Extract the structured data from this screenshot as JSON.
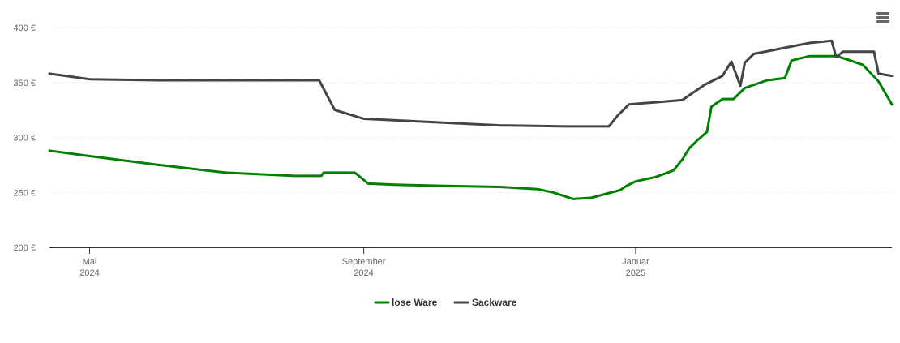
{
  "chart_data": {
    "type": "line",
    "title": "",
    "xlabel": "",
    "ylabel": "",
    "ylim": [
      200,
      400
    ],
    "y_ticks": [
      {
        "value": 200,
        "label": "200 €"
      },
      {
        "value": 250,
        "label": "250 €"
      },
      {
        "value": 300,
        "label": "300 €"
      },
      {
        "value": 350,
        "label": "350 €"
      },
      {
        "value": 400,
        "label": "400 €"
      }
    ],
    "x_ticks": [
      {
        "date": "2024-05-01",
        "line1": "Mai",
        "line2": "2024"
      },
      {
        "date": "2024-09-01",
        "line1": "September",
        "line2": "2024"
      },
      {
        "date": "2025-01-01",
        "line1": "Januar",
        "line2": "2025"
      }
    ],
    "xlim": [
      "2024-04-13",
      "2025-04-26"
    ],
    "grid": true,
    "legend_position": "bottom-center",
    "series": [
      {
        "name": "lose Ware",
        "color": "#008000",
        "points": [
          [
            "2024-04-13",
            288
          ],
          [
            "2024-05-01",
            283
          ],
          [
            "2024-06-01",
            275
          ],
          [
            "2024-07-01",
            268
          ],
          [
            "2024-08-01",
            265
          ],
          [
            "2024-08-13",
            265
          ],
          [
            "2024-08-14",
            268
          ],
          [
            "2024-08-28",
            268
          ],
          [
            "2024-09-03",
            258
          ],
          [
            "2024-09-15",
            257
          ],
          [
            "2024-10-05",
            256
          ],
          [
            "2024-11-01",
            255
          ],
          [
            "2024-11-18",
            253
          ],
          [
            "2024-11-25",
            250
          ],
          [
            "2024-12-04",
            244
          ],
          [
            "2024-12-12",
            245
          ],
          [
            "2024-12-25",
            252
          ],
          [
            "2024-12-28",
            256
          ],
          [
            "2025-01-01",
            260
          ],
          [
            "2025-01-10",
            264
          ],
          [
            "2025-01-18",
            270
          ],
          [
            "2025-01-22",
            280
          ],
          [
            "2025-01-25",
            290
          ],
          [
            "2025-01-29",
            298
          ],
          [
            "2025-02-02",
            305
          ],
          [
            "2025-02-04",
            328
          ],
          [
            "2025-02-09",
            335
          ],
          [
            "2025-02-14",
            335
          ],
          [
            "2025-02-19",
            345
          ],
          [
            "2025-03-01",
            352
          ],
          [
            "2025-03-09",
            354
          ],
          [
            "2025-03-12",
            370
          ],
          [
            "2025-03-20",
            374
          ],
          [
            "2025-04-01",
            374
          ],
          [
            "2025-04-06",
            371
          ],
          [
            "2025-04-13",
            366
          ],
          [
            "2025-04-20",
            351
          ],
          [
            "2025-04-26",
            330
          ]
        ]
      },
      {
        "name": "Sackware",
        "color": "#434348",
        "points": [
          [
            "2024-04-13",
            358
          ],
          [
            "2024-05-01",
            353
          ],
          [
            "2024-06-01",
            352
          ],
          [
            "2024-07-01",
            352
          ],
          [
            "2024-08-01",
            352
          ],
          [
            "2024-08-12",
            352
          ],
          [
            "2024-08-19",
            325
          ],
          [
            "2024-09-01",
            317
          ],
          [
            "2024-10-01",
            314
          ],
          [
            "2024-11-01",
            311
          ],
          [
            "2024-12-01",
            310
          ],
          [
            "2024-12-20",
            310
          ],
          [
            "2024-12-24",
            320
          ],
          [
            "2024-12-29",
            330
          ],
          [
            "2025-01-10",
            332
          ],
          [
            "2025-01-22",
            334
          ],
          [
            "2025-02-01",
            348
          ],
          [
            "2025-02-09",
            356
          ],
          [
            "2025-02-13",
            369
          ],
          [
            "2025-02-17",
            347
          ],
          [
            "2025-02-19",
            368
          ],
          [
            "2025-02-23",
            376
          ],
          [
            "2025-03-10",
            382
          ],
          [
            "2025-03-20",
            386
          ],
          [
            "2025-03-30",
            388
          ],
          [
            "2025-04-01",
            373
          ],
          [
            "2025-04-04",
            378
          ],
          [
            "2025-04-18",
            378
          ],
          [
            "2025-04-20",
            358
          ],
          [
            "2025-04-26",
            356
          ]
        ]
      }
    ]
  },
  "ui": {
    "menu_icon": "hamburger-menu-icon"
  }
}
